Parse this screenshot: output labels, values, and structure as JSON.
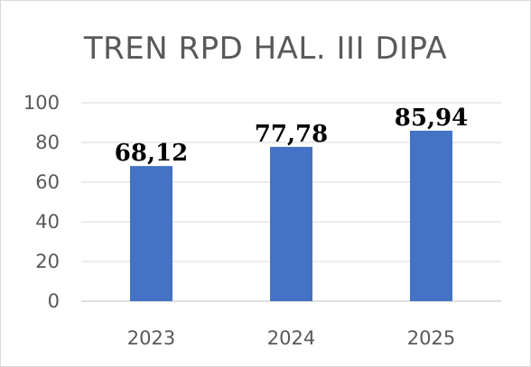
{
  "chart_data": {
    "type": "bar",
    "title": "TREN RPD HAL. III DIPA",
    "categories": [
      "2023",
      "2024",
      "2025"
    ],
    "values": [
      68.12,
      77.78,
      85.94
    ],
    "data_labels": [
      "68,12",
      "77,78",
      "85,94"
    ],
    "ylim": [
      0,
      100
    ],
    "yticks": [
      "0",
      "20",
      "40",
      "60",
      "80",
      "100"
    ],
    "grid": true,
    "legend": "none",
    "bar_color": "#4472c4"
  }
}
